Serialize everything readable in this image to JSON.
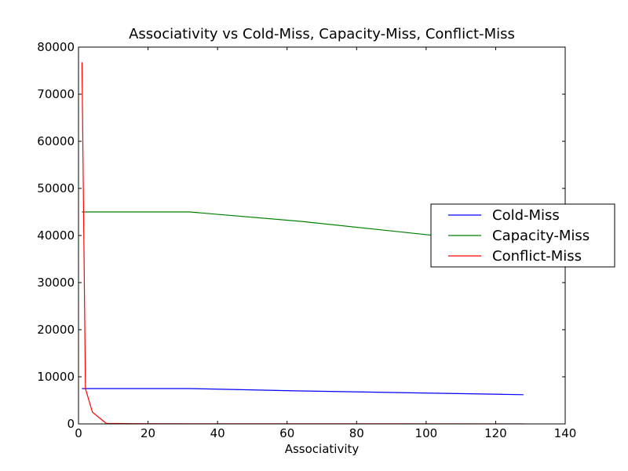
{
  "chart_data": {
    "type": "line",
    "title": "Associativity vs Cold-Miss, Capacity-Miss, Conflict-Miss",
    "xlabel": "Associativity",
    "ylabel": "",
    "xlim": [
      0,
      140
    ],
    "ylim": [
      0,
      80000
    ],
    "xticks": [
      "0",
      "20",
      "40",
      "60",
      "80",
      "100",
      "120",
      "140"
    ],
    "yticks": [
      "0",
      "10000",
      "20000",
      "30000",
      "40000",
      "50000",
      "60000",
      "70000",
      "80000"
    ],
    "grid": false,
    "legend_position": "right",
    "series": [
      {
        "name": "Cold-Miss",
        "color": "#0000ff",
        "x": [
          1,
          2,
          4,
          8,
          16,
          32,
          64,
          128
        ],
        "y": [
          7500,
          7500,
          7500,
          7500,
          7500,
          7500,
          7000,
          6200
        ]
      },
      {
        "name": "Capacity-Miss",
        "color": "#008000",
        "x": [
          1,
          2,
          4,
          8,
          16,
          32,
          64,
          128
        ],
        "y": [
          45000,
          45000,
          45000,
          45000,
          45000,
          45000,
          43000,
          38000
        ]
      },
      {
        "name": "Conflict-Miss",
        "color": "#ff0000",
        "x": [
          1,
          2,
          4,
          8,
          16,
          32,
          64,
          128
        ],
        "y": [
          76800,
          7500,
          2500,
          100,
          50,
          30,
          20,
          10
        ]
      }
    ]
  }
}
